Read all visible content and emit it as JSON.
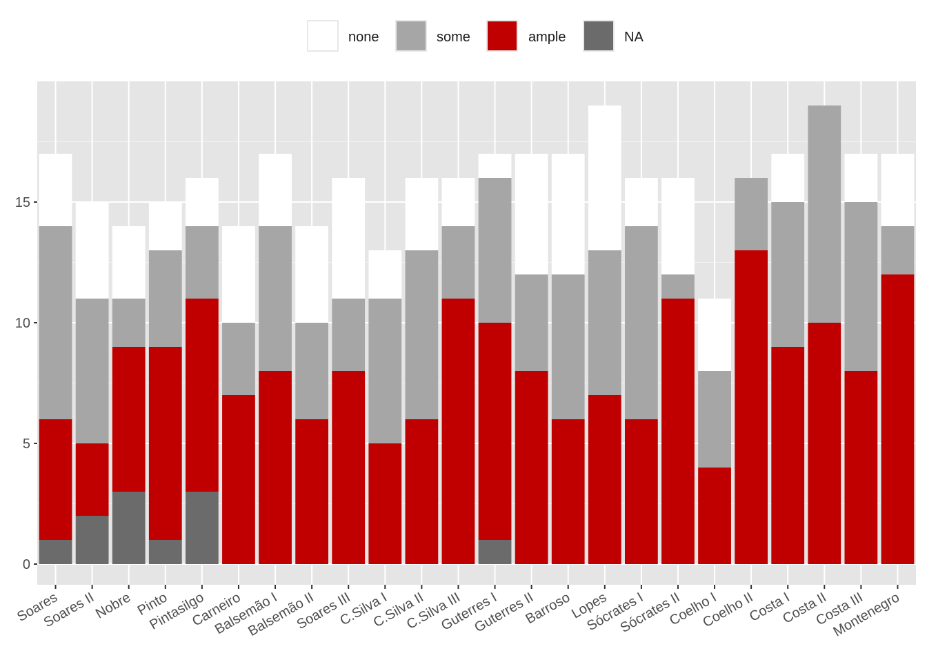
{
  "chart_data": {
    "type": "bar",
    "stacked": true,
    "title": "",
    "xlabel": "",
    "ylabel": "",
    "ylim": [
      -0.8,
      19.95
    ],
    "y_ticks": [
      "0",
      "5",
      "10",
      "15"
    ],
    "legend_position": "top",
    "grid": true,
    "categories": [
      "Soares",
      "Soares II",
      "Nobre",
      "Pinto",
      "Pintasilgo",
      "Carneiro",
      "Balsemão I",
      "Balsemão II",
      "Soares III",
      "C.Silva I",
      "C.Silva II",
      "C.Silva III",
      "Guterres I",
      "Guterres II",
      "Barroso",
      "Lopes",
      "Sócrates I",
      "Sócrates II",
      "Coelho I",
      "Coelho II",
      "Costa I",
      "Costa II",
      "Costa III",
      "Montenegro"
    ],
    "series": [
      {
        "name": "NA",
        "color": "#6b6b6b",
        "values": [
          1,
          2,
          3,
          1,
          3,
          0,
          0,
          0,
          0,
          0,
          0,
          0,
          1,
          0,
          0,
          0,
          0,
          0,
          0,
          0,
          0,
          0,
          0,
          0
        ]
      },
      {
        "name": "ample",
        "color": "#c00000",
        "values": [
          5,
          3,
          6,
          8,
          8,
          7,
          8,
          6,
          8,
          5,
          6,
          11,
          9,
          8,
          6,
          7,
          6,
          11,
          4,
          13,
          9,
          10,
          8,
          12
        ]
      },
      {
        "name": "some",
        "color": "#a6a6a6",
        "values": [
          8,
          6,
          2,
          4,
          3,
          3,
          6,
          4,
          3,
          6,
          7,
          3,
          6,
          4,
          6,
          6,
          8,
          1,
          4,
          3,
          6,
          9,
          7,
          2
        ]
      },
      {
        "name": "none",
        "color": "#ffffff",
        "values": [
          3,
          4,
          3,
          2,
          2,
          4,
          3,
          4,
          5,
          2,
          3,
          2,
          1,
          5,
          5,
          6,
          2,
          4,
          3,
          0,
          2,
          0,
          2,
          3
        ]
      }
    ],
    "legend": [
      {
        "label": "none",
        "color": "#ffffff"
      },
      {
        "label": "some",
        "color": "#a6a6a6"
      },
      {
        "label": "ample",
        "color": "#c00000"
      },
      {
        "label": "NA",
        "color": "#6b6b6b"
      }
    ],
    "colors": {
      "panel": "#e5e5e5",
      "grid": "#ffffff",
      "text": "#4d4d4d"
    }
  }
}
